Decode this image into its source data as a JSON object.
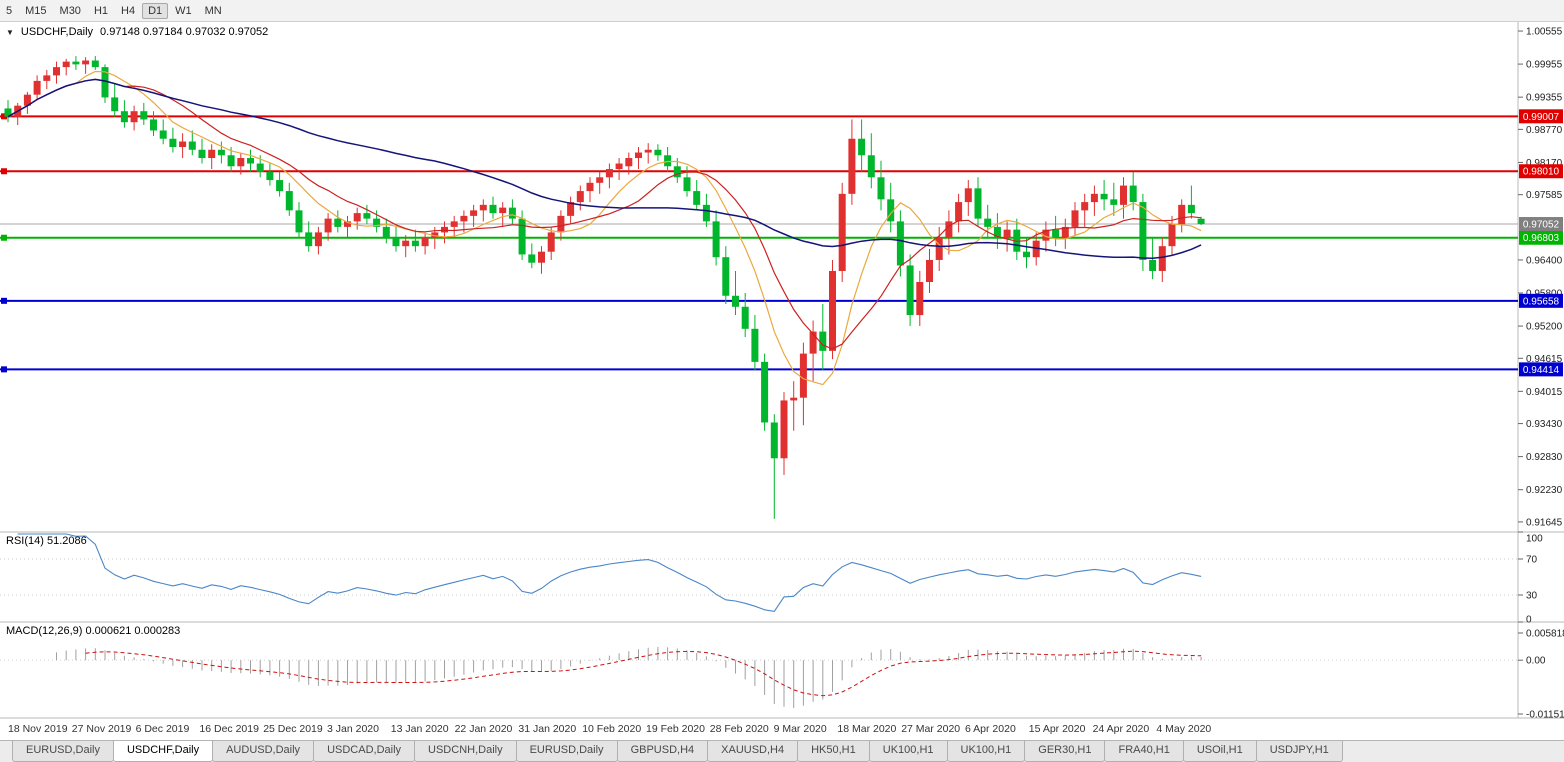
{
  "toolbar": {
    "timeframes": [
      "5",
      "M15",
      "M30",
      "H1",
      "H4",
      "D1",
      "W1",
      "MN"
    ],
    "active": "D1"
  },
  "chart": {
    "collapse_icon": "▼",
    "symbol": "USDCHF,Daily",
    "ohlc_text": "0.97148 0.97184 0.97032 0.97052"
  },
  "rsi_title": "RSI(14) 51.2086",
  "macd_title": "MACD(12,26,9) 0.000621 0.000283",
  "tabs": {
    "active": "USDCHF,Daily",
    "active_index": 1,
    "items": [
      "EURUSD,Daily",
      "USDCHF,Daily",
      "AUDUSD,Daily",
      "USDCAD,Daily",
      "USDCNH,Daily",
      "EURUSD,Daily",
      "GBPUSD,H4",
      "XAUUSD,H4",
      "HK50,H1",
      "UK100,H1",
      "UK100,H1",
      "GER30,H1",
      "FRA40,H1",
      "USOil,H1",
      "USDJPY,H1"
    ],
    "active_label": "USDCHF,Daily"
  },
  "chart_data": {
    "type": "candlestick+indicators",
    "symbol": "USDCHF",
    "timeframe": "Daily",
    "ohlc_current": {
      "open": "0.97148",
      "high": "0.97184",
      "low": "0.97032",
      "close": "0.97052"
    },
    "colors": {
      "up_candle": "#e03030",
      "down_candle": "#00b62c",
      "resistance_line": "#e00000",
      "support_green_line": "#00b400",
      "support_blue_line": "#0000d0",
      "current_price_line": "#a8a8a8",
      "current_price_box": "#808080",
      "ma_fast": "#eaa93e",
      "ma_mid": "#cc2222",
      "ma_slow": "#14147a",
      "rsi_line": "#4a86c8",
      "macd_histogram": "#a0a0a0",
      "macd_signal": "#cc1111"
    },
    "price_axis": {
      "max": 1.00719,
      "min": 0.91462,
      "ticks": [
        "1.00555",
        "0.99955",
        "0.99355",
        "0.98770",
        "0.98170",
        "0.97585",
        "0.96400",
        "0.95800",
        "0.95200",
        "0.94615",
        "0.94015",
        "0.93430",
        "0.92830",
        "0.92230",
        "0.91645"
      ]
    },
    "hlines": [
      {
        "price": 0.99007,
        "label": "0.99007",
        "color": "#e00000"
      },
      {
        "price": 0.9801,
        "label": "0.98010",
        "color": "#e00000"
      },
      {
        "price": 0.96803,
        "label": "0.96803",
        "color": "#00b400"
      },
      {
        "price": 0.95658,
        "label": "0.95658",
        "color": "#0000d0"
      },
      {
        "price": 0.94414,
        "label": "0.94414",
        "color": "#0000d0"
      }
    ],
    "current_price": {
      "value": 0.97052,
      "label": "0.97052"
    },
    "ma": [
      {
        "name": "ma-fast",
        "period": 8,
        "color": "#eaa93e"
      },
      {
        "name": "ma-mid",
        "period": 13,
        "color": "#cc2222"
      },
      {
        "name": "ma-slow",
        "period": 45,
        "color": "#14147a"
      }
    ],
    "x_labels": [
      "18 Nov 2019",
      "27 Nov 2019",
      "6 Dec 2019",
      "16 Dec 2019",
      "25 Dec 2019",
      "3 Jan 2020",
      "13 Jan 2020",
      "22 Jan 2020",
      "31 Jan 2020",
      "10 Feb 2020",
      "19 Feb 2020",
      "28 Feb 2020",
      "9 Mar 2020",
      "18 Mar 2020",
      "27 Mar 2020",
      "6 Apr 2020",
      "15 Apr 2020",
      "24 Apr 2020",
      "4 May 2020"
    ],
    "rsi": {
      "period": 14,
      "current": 51.2086,
      "levels": [
        70,
        30
      ],
      "axis_ticks": [
        100,
        70,
        30,
        0
      ]
    },
    "macd": {
      "fast": 12,
      "slow": 26,
      "signal": 9,
      "current_macd": 0.000621,
      "current_signal": 0.000283,
      "axis": {
        "max": 0.00817,
        "min": -0.01237,
        "ticks": [
          {
            "v": 0.005818,
            "label": "0.005818"
          },
          {
            "v": 0,
            "label": "0.00"
          },
          {
            "v": -0.011514,
            "label": "-0.011514"
          }
        ]
      }
    },
    "candles": [
      [
        0.9915,
        0.993,
        0.989,
        0.99
      ],
      [
        0.99,
        0.9925,
        0.9885,
        0.992
      ],
      [
        0.992,
        0.9945,
        0.9905,
        0.994
      ],
      [
        0.994,
        0.9975,
        0.993,
        0.9965
      ],
      [
        0.9965,
        0.9985,
        0.995,
        0.9975
      ],
      [
        0.9975,
        1.0,
        0.996,
        0.999
      ],
      [
        0.999,
        1.0005,
        0.9975,
        1.0
      ],
      [
        1.0,
        1.001,
        0.9985,
        0.9995
      ],
      [
        0.9995,
        1.0008,
        0.9978,
        1.0002
      ],
      [
        1.0002,
        1.001,
        0.9985,
        0.999
      ],
      [
        0.999,
        0.9995,
        0.9925,
        0.9935
      ],
      [
        0.9935,
        0.996,
        0.99,
        0.991
      ],
      [
        0.991,
        0.993,
        0.988,
        0.989
      ],
      [
        0.989,
        0.992,
        0.9875,
        0.991
      ],
      [
        0.991,
        0.9925,
        0.9885,
        0.9895
      ],
      [
        0.9895,
        0.991,
        0.9865,
        0.9875
      ],
      [
        0.9875,
        0.9895,
        0.985,
        0.986
      ],
      [
        0.986,
        0.988,
        0.9835,
        0.9845
      ],
      [
        0.9845,
        0.987,
        0.9825,
        0.9855
      ],
      [
        0.9855,
        0.9875,
        0.983,
        0.984
      ],
      [
        0.984,
        0.986,
        0.9815,
        0.9825
      ],
      [
        0.9825,
        0.985,
        0.9805,
        0.984
      ],
      [
        0.984,
        0.9855,
        0.9815,
        0.983
      ],
      [
        0.983,
        0.9845,
        0.98,
        0.981
      ],
      [
        0.981,
        0.9835,
        0.9795,
        0.9825
      ],
      [
        0.9825,
        0.984,
        0.98,
        0.9815
      ],
      [
        0.9815,
        0.983,
        0.979,
        0.98
      ],
      [
        0.98,
        0.9815,
        0.9775,
        0.9785
      ],
      [
        0.9785,
        0.98,
        0.9755,
        0.9765
      ],
      [
        0.9765,
        0.978,
        0.972,
        0.973
      ],
      [
        0.973,
        0.9745,
        0.968,
        0.969
      ],
      [
        0.969,
        0.971,
        0.9655,
        0.9665
      ],
      [
        0.9665,
        0.97,
        0.965,
        0.969
      ],
      [
        0.969,
        0.9725,
        0.9675,
        0.9715
      ],
      [
        0.9715,
        0.973,
        0.969,
        0.97
      ],
      [
        0.97,
        0.972,
        0.968,
        0.971
      ],
      [
        0.971,
        0.9735,
        0.9695,
        0.9725
      ],
      [
        0.9725,
        0.974,
        0.9705,
        0.9715
      ],
      [
        0.9715,
        0.973,
        0.969,
        0.97
      ],
      [
        0.97,
        0.9715,
        0.967,
        0.968
      ],
      [
        0.968,
        0.97,
        0.9655,
        0.9665
      ],
      [
        0.9665,
        0.9685,
        0.9645,
        0.9675
      ],
      [
        0.9675,
        0.9695,
        0.9655,
        0.9665
      ],
      [
        0.9665,
        0.969,
        0.965,
        0.968
      ],
      [
        0.968,
        0.97,
        0.966,
        0.969
      ],
      [
        0.969,
        0.971,
        0.967,
        0.97
      ],
      [
        0.97,
        0.972,
        0.968,
        0.971
      ],
      [
        0.971,
        0.973,
        0.969,
        0.972
      ],
      [
        0.972,
        0.974,
        0.97,
        0.973
      ],
      [
        0.973,
        0.975,
        0.971,
        0.974
      ],
      [
        0.974,
        0.9755,
        0.9715,
        0.9725
      ],
      [
        0.9725,
        0.9745,
        0.97,
        0.9735
      ],
      [
        0.9735,
        0.975,
        0.9705,
        0.9715
      ],
      [
        0.9715,
        0.973,
        0.964,
        0.965
      ],
      [
        0.965,
        0.967,
        0.9625,
        0.9635
      ],
      [
        0.9635,
        0.9665,
        0.9615,
        0.9655
      ],
      [
        0.9655,
        0.97,
        0.964,
        0.969
      ],
      [
        0.969,
        0.973,
        0.9675,
        0.972
      ],
      [
        0.972,
        0.9755,
        0.9705,
        0.9745
      ],
      [
        0.9745,
        0.9775,
        0.973,
        0.9765
      ],
      [
        0.9765,
        0.979,
        0.9745,
        0.978
      ],
      [
        0.978,
        0.98,
        0.976,
        0.979
      ],
      [
        0.979,
        0.9815,
        0.977,
        0.9805
      ],
      [
        0.9805,
        0.9825,
        0.9785,
        0.9815
      ],
      [
        0.981,
        0.9835,
        0.9795,
        0.9825
      ],
      [
        0.9825,
        0.9845,
        0.9805,
        0.9835
      ],
      [
        0.9835,
        0.9852,
        0.9815,
        0.984
      ],
      [
        0.984,
        0.985,
        0.982,
        0.983
      ],
      [
        0.983,
        0.9845,
        0.98,
        0.981
      ],
      [
        0.981,
        0.9825,
        0.978,
        0.979
      ],
      [
        0.979,
        0.981,
        0.9755,
        0.9765
      ],
      [
        0.9765,
        0.9785,
        0.973,
        0.974
      ],
      [
        0.974,
        0.976,
        0.97,
        0.971
      ],
      [
        0.971,
        0.973,
        0.963,
        0.9645
      ],
      [
        0.9645,
        0.9665,
        0.956,
        0.9575
      ],
      [
        0.9575,
        0.962,
        0.954,
        0.9555
      ],
      [
        0.9555,
        0.958,
        0.95,
        0.9515
      ],
      [
        0.9515,
        0.954,
        0.944,
        0.9455
      ],
      [
        0.9455,
        0.947,
        0.933,
        0.9345
      ],
      [
        0.9345,
        0.936,
        0.917,
        0.928
      ],
      [
        0.928,
        0.94,
        0.925,
        0.9385
      ],
      [
        0.9385,
        0.942,
        0.933,
        0.939
      ],
      [
        0.939,
        0.949,
        0.934,
        0.947
      ],
      [
        0.947,
        0.953,
        0.942,
        0.951
      ],
      [
        0.951,
        0.956,
        0.944,
        0.9475
      ],
      [
        0.9475,
        0.964,
        0.946,
        0.962
      ],
      [
        0.962,
        0.978,
        0.96,
        0.976
      ],
      [
        0.976,
        0.9895,
        0.974,
        0.986
      ],
      [
        0.986,
        0.9895,
        0.98,
        0.983
      ],
      [
        0.983,
        0.987,
        0.977,
        0.979
      ],
      [
        0.979,
        0.982,
        0.973,
        0.975
      ],
      [
        0.975,
        0.978,
        0.969,
        0.971
      ],
      [
        0.971,
        0.973,
        0.961,
        0.963
      ],
      [
        0.963,
        0.965,
        0.952,
        0.954
      ],
      [
        0.954,
        0.962,
        0.952,
        0.96
      ],
      [
        0.96,
        0.966,
        0.958,
        0.964
      ],
      [
        0.964,
        0.97,
        0.962,
        0.968
      ],
      [
        0.968,
        0.973,
        0.965,
        0.971
      ],
      [
        0.971,
        0.976,
        0.969,
        0.9745
      ],
      [
        0.9745,
        0.9785,
        0.972,
        0.977
      ],
      [
        0.977,
        0.979,
        0.97,
        0.9715
      ],
      [
        0.9715,
        0.974,
        0.968,
        0.97
      ],
      [
        0.97,
        0.9725,
        0.966,
        0.968
      ],
      [
        0.968,
        0.971,
        0.9655,
        0.9695
      ],
      [
        0.9695,
        0.9715,
        0.964,
        0.9655
      ],
      [
        0.9655,
        0.968,
        0.9625,
        0.9645
      ],
      [
        0.9645,
        0.969,
        0.963,
        0.9675
      ],
      [
        0.9675,
        0.971,
        0.9655,
        0.9695
      ],
      [
        0.9695,
        0.972,
        0.9665,
        0.968
      ],
      [
        0.968,
        0.9715,
        0.966,
        0.97
      ],
      [
        0.97,
        0.9745,
        0.9685,
        0.973
      ],
      [
        0.973,
        0.976,
        0.97,
        0.9745
      ],
      [
        0.9745,
        0.9775,
        0.972,
        0.976
      ],
      [
        0.976,
        0.9785,
        0.973,
        0.975
      ],
      [
        0.975,
        0.978,
        0.972,
        0.974
      ],
      [
        0.974,
        0.979,
        0.9715,
        0.9775
      ],
      [
        0.9775,
        0.98,
        0.973,
        0.9745
      ],
      [
        0.9745,
        0.976,
        0.962,
        0.964
      ],
      [
        0.964,
        0.968,
        0.9605,
        0.962
      ],
      [
        0.962,
        0.968,
        0.96,
        0.9665
      ],
      [
        0.9665,
        0.972,
        0.965,
        0.9705
      ],
      [
        0.9705,
        0.975,
        0.969,
        0.974
      ],
      [
        0.974,
        0.9775,
        0.9715,
        0.9725
      ],
      [
        0.97148,
        0.97184,
        0.97032,
        0.97052
      ]
    ]
  }
}
